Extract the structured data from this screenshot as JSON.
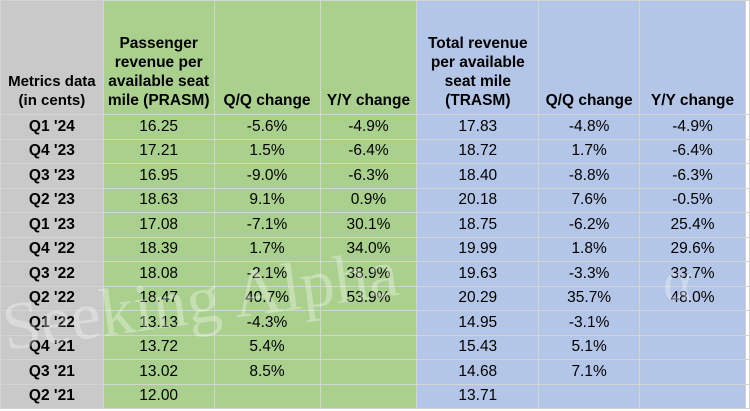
{
  "header": {
    "metric": "Metrics data (in cents)",
    "prasm": "Passenger revenue per available seat mile (PRASM)",
    "qq1": "Q/Q change",
    "yy1": "Y/Y change",
    "trasm": "Total revenue per available seat mile (TRASM)",
    "qq2": "Q/Q change",
    "yy2": "Y/Y change"
  },
  "rows": [
    {
      "period": "Q1 '24",
      "prasm": "16.25",
      "qq1": "-5.6%",
      "yy1": "-4.9%",
      "trasm": "17.83",
      "qq2": "-4.8%",
      "yy2": "-4.9%"
    },
    {
      "period": "Q4 '23",
      "prasm": "17.21",
      "qq1": "1.5%",
      "yy1": "-6.4%",
      "trasm": "18.72",
      "qq2": "1.7%",
      "yy2": "-6.4%"
    },
    {
      "period": "Q3 '23",
      "prasm": "16.95",
      "qq1": "-9.0%",
      "yy1": "-6.3%",
      "trasm": "18.40",
      "qq2": "-8.8%",
      "yy2": "-6.3%"
    },
    {
      "period": "Q2 '23",
      "prasm": "18.63",
      "qq1": "9.1%",
      "yy1": "0.9%",
      "trasm": "20.18",
      "qq2": "7.6%",
      "yy2": "-0.5%"
    },
    {
      "period": "Q1 '23",
      "prasm": "17.08",
      "qq1": "-7.1%",
      "yy1": "30.1%",
      "trasm": "18.75",
      "qq2": "-6.2%",
      "yy2": "25.4%"
    },
    {
      "period": "Q4 '22",
      "prasm": "18.39",
      "qq1": "1.7%",
      "yy1": "34.0%",
      "trasm": "19.99",
      "qq2": "1.8%",
      "yy2": "29.6%"
    },
    {
      "period": "Q3 '22",
      "prasm": "18.08",
      "qq1": "-2.1%",
      "yy1": "38.9%",
      "trasm": "19.63",
      "qq2": "-3.3%",
      "yy2": "33.7%"
    },
    {
      "period": "Q2 '22",
      "prasm": "18.47",
      "qq1": "40.7%",
      "yy1": "53.9%",
      "trasm": "20.29",
      "qq2": "35.7%",
      "yy2": "48.0%"
    },
    {
      "period": "Q1 '22",
      "prasm": "13.13",
      "qq1": "-4.3%",
      "yy1": "",
      "trasm": "14.95",
      "qq2": "-3.1%",
      "yy2": ""
    },
    {
      "period": "Q4 '21",
      "prasm": "13.72",
      "qq1": "5.4%",
      "yy1": "",
      "trasm": "15.43",
      "qq2": "5.1%",
      "yy2": ""
    },
    {
      "period": "Q3 '21",
      "prasm": "13.02",
      "qq1": "8.5%",
      "yy1": "",
      "trasm": "14.68",
      "qq2": "7.1%",
      "yy2": ""
    },
    {
      "period": "Q2 '21",
      "prasm": "12.00",
      "qq1": "",
      "yy1": "",
      "trasm": "13.71",
      "qq2": "",
      "yy2": ""
    }
  ],
  "watermark": "Seeking Alpha",
  "watermark_mark": "α",
  "colors": {
    "label_gray": "#c9c9c9",
    "prasm_green": "#aad08e",
    "trasm_blue": "#b4c6e7",
    "gridline": "#d4d4d4"
  }
}
